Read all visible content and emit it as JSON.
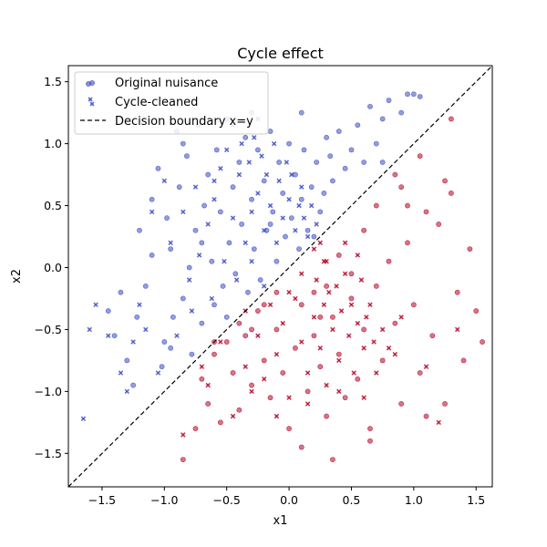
{
  "chart_data": {
    "type": "scatter",
    "title": "Cycle effect",
    "xlabel": "x1",
    "ylabel": "x2",
    "xlim": [
      -1.77,
      1.63
    ],
    "ylim": [
      -1.77,
      1.63
    ],
    "xticks": [
      -1.5,
      -1.0,
      -0.5,
      0.0,
      0.5,
      1.0,
      1.5
    ],
    "yticks": [
      -1.5,
      -1.0,
      -0.5,
      0.0,
      0.5,
      1.0,
      1.5
    ],
    "xtick_labels": [
      "−1.5",
      "−1.0",
      "−0.5",
      "0.0",
      "0.5",
      "1.0",
      "1.5"
    ],
    "ytick_labels": [
      "−1.5",
      "−1.0",
      "−0.5",
      "0.0",
      "0.5",
      "1.0",
      "1.5"
    ],
    "grid": false,
    "legend": {
      "position": "upper-left",
      "entries": [
        "Original nuisance",
        "Cycle-cleaned",
        "Decision boundary x=y"
      ]
    },
    "colors": {
      "class_above": "#3b4cc0",
      "class_below": "#b40426",
      "boundary": "#000000"
    },
    "boundary": {
      "label": "Decision boundary x=y",
      "points": [
        [
          -1.77,
          -1.77
        ],
        [
          1.63,
          1.63
        ]
      ],
      "style": "dashed"
    },
    "series": [
      {
        "name": "Original nuisance",
        "marker": "circle",
        "points": [
          [
            -1.45,
            -0.35
          ],
          [
            -1.4,
            -0.55
          ],
          [
            -1.35,
            -0.2
          ],
          [
            -1.3,
            -0.75
          ],
          [
            -1.25,
            -0.95
          ],
          [
            -1.22,
            -0.4
          ],
          [
            -1.2,
            0.3
          ],
          [
            -1.15,
            -0.15
          ],
          [
            -1.1,
            0.55
          ],
          [
            -1.05,
            0.8
          ],
          [
            -1.02,
            -0.8
          ],
          [
            -1.0,
            -0.6
          ],
          [
            -0.98,
            0.4
          ],
          [
            -0.95,
            0.15
          ],
          [
            -0.93,
            -0.4
          ],
          [
            -0.9,
            1.1
          ],
          [
            -0.88,
            0.65
          ],
          [
            -0.85,
            -0.25
          ],
          [
            -0.82,
            0.9
          ],
          [
            -0.8,
            0.0
          ],
          [
            -0.78,
            -0.7
          ],
          [
            -0.75,
            0.3
          ],
          [
            -0.73,
            1.15
          ],
          [
            -0.7,
            -0.45
          ],
          [
            -0.68,
            0.5
          ],
          [
            -0.65,
            0.75
          ],
          [
            -0.62,
            0.05
          ],
          [
            -0.6,
            -0.3
          ],
          [
            -0.58,
            0.95
          ],
          [
            -0.55,
            0.45
          ],
          [
            -0.53,
            -0.15
          ],
          [
            -0.5,
            1.2
          ],
          [
            -0.48,
            0.2
          ],
          [
            -0.45,
            0.65
          ],
          [
            -0.43,
            -0.05
          ],
          [
            -0.4,
            0.85
          ],
          [
            -0.38,
            0.35
          ],
          [
            -0.35,
            1.05
          ],
          [
            -0.33,
            -0.2
          ],
          [
            -0.3,
            0.55
          ],
          [
            -0.28,
            0.15
          ],
          [
            -0.25,
            0.95
          ],
          [
            -0.23,
            -0.1
          ],
          [
            -0.2,
            0.7
          ],
          [
            -0.18,
            0.3
          ],
          [
            -0.15,
            1.1
          ],
          [
            -0.13,
            0.45
          ],
          [
            -0.1,
            0.05
          ],
          [
            -0.08,
            0.85
          ],
          [
            -0.05,
            0.6
          ],
          [
            -0.03,
            0.25
          ],
          [
            0.0,
            1.0
          ],
          [
            0.02,
            0.4
          ],
          [
            0.05,
            0.75
          ],
          [
            0.08,
            0.15
          ],
          [
            0.1,
            0.55
          ],
          [
            0.12,
            0.95
          ],
          [
            0.15,
            0.3
          ],
          [
            0.18,
            0.65
          ],
          [
            0.2,
            0.25
          ],
          [
            0.22,
            0.85
          ],
          [
            0.25,
            0.45
          ],
          [
            0.28,
            0.6
          ],
          [
            0.3,
            1.05
          ],
          [
            0.33,
            0.9
          ],
          [
            0.35,
            0.7
          ],
          [
            0.4,
            1.1
          ],
          [
            0.45,
            0.8
          ],
          [
            0.5,
            0.95
          ],
          [
            0.55,
            1.15
          ],
          [
            0.6,
            0.85
          ],
          [
            0.65,
            1.3
          ],
          [
            0.7,
            1.0
          ],
          [
            0.75,
            1.2
          ],
          [
            0.8,
            1.35
          ],
          [
            0.9,
            1.25
          ],
          [
            0.95,
            1.4
          ],
          [
            1.0,
            1.4
          ],
          [
            1.05,
            1.38
          ],
          [
            -0.95,
            -0.65
          ],
          [
            -0.6,
            -0.6
          ],
          [
            -0.4,
            -0.45
          ],
          [
            -0.2,
            -0.3
          ],
          [
            -1.1,
            0.1
          ],
          [
            -0.85,
            1.0
          ],
          [
            -0.3,
            1.25
          ],
          [
            0.1,
            1.25
          ],
          [
            -0.7,
            0.2
          ],
          [
            -0.5,
            -0.4
          ],
          [
            -0.15,
            0.35
          ]
        ]
      },
      {
        "name": "Cycle-cleaned",
        "marker": "x",
        "points": [
          [
            -1.65,
            -1.22
          ],
          [
            -1.6,
            -0.5
          ],
          [
            -1.55,
            -0.3
          ],
          [
            -1.45,
            -0.55
          ],
          [
            -1.35,
            -0.85
          ],
          [
            -1.3,
            -1.0
          ],
          [
            -1.25,
            -0.6
          ],
          [
            -1.2,
            -0.3
          ],
          [
            -1.15,
            -0.5
          ],
          [
            -1.1,
            0.45
          ],
          [
            -1.05,
            -0.85
          ],
          [
            -1.0,
            0.7
          ],
          [
            -0.95,
            0.2
          ],
          [
            -0.9,
            -0.55
          ],
          [
            -0.85,
            0.45
          ],
          [
            -0.8,
            -0.1
          ],
          [
            -0.78,
            -0.35
          ],
          [
            -0.75,
            0.65
          ],
          [
            -0.72,
            0.1
          ],
          [
            -0.7,
            -0.8
          ],
          [
            -0.65,
            0.35
          ],
          [
            -0.62,
            -0.25
          ],
          [
            -0.6,
            0.55
          ],
          [
            -0.55,
            0.8
          ],
          [
            -0.52,
            0.05
          ],
          [
            -0.5,
            0.95
          ],
          [
            -0.45,
            0.4
          ],
          [
            -0.42,
            -0.1
          ],
          [
            -0.4,
            0.75
          ],
          [
            -0.38,
            1.0
          ],
          [
            -0.35,
            0.2
          ],
          [
            -0.32,
            0.85
          ],
          [
            -0.3,
            0.45
          ],
          [
            -0.28,
            1.05
          ],
          [
            -0.25,
            0.6
          ],
          [
            -0.22,
            0.9
          ],
          [
            -0.2,
            0.3
          ],
          [
            -0.18,
            0.75
          ],
          [
            -0.15,
            0.5
          ],
          [
            -0.12,
            1.0
          ],
          [
            -0.1,
            0.2
          ],
          [
            -0.08,
            0.7
          ],
          [
            -0.05,
            0.4
          ],
          [
            -0.02,
            0.85
          ],
          [
            0.0,
            0.55
          ],
          [
            0.02,
            0.75
          ],
          [
            0.05,
            0.3
          ],
          [
            0.08,
            0.5
          ],
          [
            0.1,
            0.65
          ],
          [
            0.12,
            0.4
          ],
          [
            0.15,
            0.25
          ],
          [
            0.18,
            0.5
          ],
          [
            0.2,
            0.15
          ],
          [
            0.22,
            0.35
          ],
          [
            0.25,
            0.2
          ],
          [
            0.28,
            0.05
          ],
          [
            -0.45,
            1.15
          ],
          [
            -0.25,
            1.2
          ],
          [
            -0.6,
            0.7
          ],
          [
            -0.3,
            0.05
          ]
        ]
      },
      {
        "name": "Original nuisance",
        "marker": "circle",
        "points": [
          [
            -0.85,
            -1.55
          ],
          [
            -0.75,
            -1.3
          ],
          [
            -0.7,
            -0.9
          ],
          [
            -0.65,
            -1.1
          ],
          [
            -0.6,
            -0.7
          ],
          [
            -0.55,
            -1.25
          ],
          [
            -0.5,
            -0.6
          ],
          [
            -0.45,
            -0.85
          ],
          [
            -0.4,
            -1.15
          ],
          [
            -0.35,
            -0.55
          ],
          [
            -0.3,
            -0.95
          ],
          [
            -0.25,
            -0.35
          ],
          [
            -0.2,
            -0.75
          ],
          [
            -0.15,
            -1.05
          ],
          [
            -0.1,
            -0.5
          ],
          [
            -0.05,
            -0.85
          ],
          [
            0.0,
            -1.3
          ],
          [
            0.05,
            -0.65
          ],
          [
            0.1,
            -0.3
          ],
          [
            0.15,
            -1.0
          ],
          [
            0.2,
            -0.55
          ],
          [
            0.25,
            -0.8
          ],
          [
            0.3,
            -1.2
          ],
          [
            0.35,
            -0.4
          ],
          [
            0.4,
            -0.7
          ],
          [
            0.45,
            -1.05
          ],
          [
            0.5,
            -0.25
          ],
          [
            0.55,
            -0.9
          ],
          [
            0.6,
            -0.5
          ],
          [
            0.65,
            -1.3
          ],
          [
            0.7,
            -0.15
          ],
          [
            0.75,
            -0.75
          ],
          [
            0.8,
            0.05
          ],
          [
            0.85,
            -0.45
          ],
          [
            0.9,
            -1.1
          ],
          [
            0.95,
            0.2
          ],
          [
            1.0,
            -0.3
          ],
          [
            1.05,
            -0.85
          ],
          [
            1.1,
            0.45
          ],
          [
            1.15,
            -0.55
          ],
          [
            1.2,
            0.35
          ],
          [
            1.25,
            -1.1
          ],
          [
            1.3,
            0.6
          ],
          [
            1.35,
            -0.2
          ],
          [
            1.4,
            -0.75
          ],
          [
            1.45,
            0.15
          ],
          [
            1.5,
            -0.35
          ],
          [
            1.55,
            -0.6
          ],
          [
            0.9,
            0.65
          ],
          [
            0.85,
            0.75
          ],
          [
            0.7,
            0.5
          ],
          [
            0.6,
            0.3
          ],
          [
            0.5,
            -0.05
          ],
          [
            0.4,
            0.1
          ],
          [
            0.3,
            -0.15
          ],
          [
            0.2,
            -0.2
          ],
          [
            0.1,
            -1.45
          ],
          [
            0.35,
            -1.55
          ],
          [
            0.65,
            -1.4
          ],
          [
            1.1,
            -1.2
          ],
          [
            1.3,
            1.2
          ],
          [
            1.25,
            0.7
          ],
          [
            1.05,
            0.9
          ],
          [
            0.95,
            0.5
          ],
          [
            0.75,
            0.85
          ],
          [
            -0.3,
            -0.5
          ],
          [
            -0.1,
            -0.2
          ],
          [
            0.25,
            -0.4
          ]
        ]
      },
      {
        "name": "Cycle-cleaned",
        "marker": "x",
        "points": [
          [
            -0.85,
            -1.35
          ],
          [
            -0.65,
            -0.95
          ],
          [
            -0.55,
            -0.6
          ],
          [
            -0.45,
            -1.2
          ],
          [
            -0.35,
            -0.8
          ],
          [
            -0.3,
            -1.0
          ],
          [
            -0.25,
            -0.55
          ],
          [
            -0.2,
            -0.9
          ],
          [
            -0.15,
            -0.3
          ],
          [
            -0.1,
            -0.7
          ],
          [
            -0.05,
            -0.45
          ],
          [
            0.0,
            -1.05
          ],
          [
            0.05,
            -0.25
          ],
          [
            0.1,
            -0.6
          ],
          [
            0.15,
            -0.85
          ],
          [
            0.2,
            -0.4
          ],
          [
            0.22,
            -0.1
          ],
          [
            0.25,
            -0.65
          ],
          [
            0.28,
            -0.3
          ],
          [
            0.3,
            -0.95
          ],
          [
            0.32,
            -0.2
          ],
          [
            0.35,
            -0.5
          ],
          [
            0.38,
            -0.15
          ],
          [
            0.4,
            -0.75
          ],
          [
            0.42,
            -0.35
          ],
          [
            0.45,
            -0.05
          ],
          [
            0.48,
            -0.55
          ],
          [
            0.5,
            -0.3
          ],
          [
            0.52,
            -0.85
          ],
          [
            0.55,
            -0.45
          ],
          [
            0.58,
            -0.1
          ],
          [
            0.6,
            -0.65
          ],
          [
            0.62,
            -0.4
          ],
          [
            0.65,
            -0.3
          ],
          [
            0.68,
            -0.6
          ],
          [
            0.7,
            -0.85
          ],
          [
            0.75,
            -0.5
          ],
          [
            0.8,
            -0.65
          ],
          [
            0.85,
            -0.7
          ],
          [
            -0.35,
            -0.35
          ],
          [
            -0.2,
            -0.15
          ],
          [
            0.0,
            -0.2
          ],
          [
            0.1,
            -0.05
          ],
          [
            0.3,
            0.05
          ],
          [
            -0.1,
            -1.2
          ],
          [
            0.15,
            -1.1
          ],
          [
            0.4,
            -1.0
          ],
          [
            0.6,
            -1.05
          ],
          [
            0.9,
            -0.4
          ],
          [
            1.1,
            -0.8
          ],
          [
            1.2,
            -1.25
          ],
          [
            1.35,
            -0.5
          ],
          [
            0.45,
            0.2
          ],
          [
            0.55,
            0.1
          ]
        ]
      }
    ]
  }
}
